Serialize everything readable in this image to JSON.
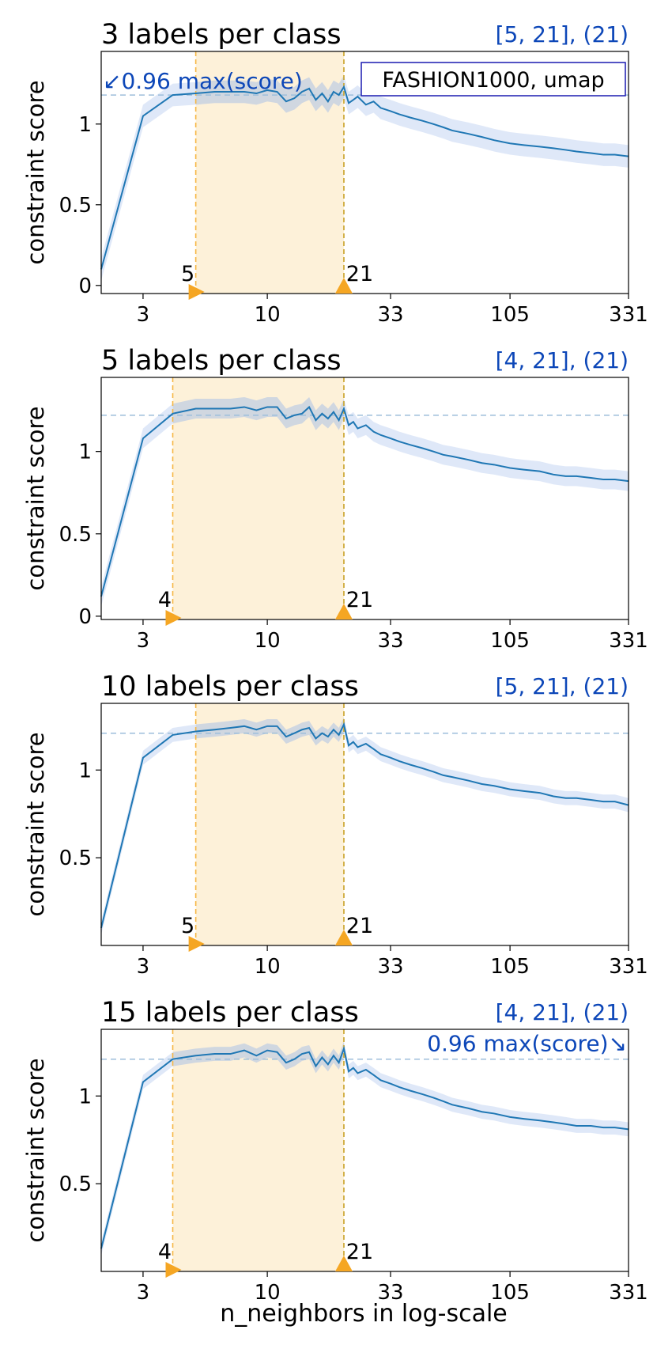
{
  "figure": {
    "xlabel": "n_neighbors in log-scale",
    "ylabel": "constraint score",
    "x_ticks": [
      3,
      10,
      33,
      105,
      331
    ],
    "xlim": [
      2,
      331
    ],
    "x_scale": "log",
    "legend_box": "FASHION1000, umap",
    "colors": {
      "line": "#1f77b4",
      "band": "#dbe6f7",
      "band_gray": "#bfc3c8",
      "region": "#fdf1d9",
      "vline_left": "#f6b642",
      "vline_right": "#c9a227",
      "marker": "#f5a623",
      "hline": "#9dbedb",
      "annotation": "#0d47b8"
    }
  },
  "chart_data": [
    {
      "type": "line",
      "title": "3 labels per class",
      "range_label": "[5, 21], (21)",
      "ylim": [
        -0.05,
        1.45
      ],
      "y_ticks": [
        0.0,
        0.5,
        1.0
      ],
      "threshold": 1.18,
      "threshold_label": "↙0.96 max(score)",
      "threshold_label_pos": "top-left",
      "range": [
        5,
        21
      ],
      "range_start_label": "5",
      "range_end_label": "21",
      "band_std": 0.07,
      "series": [
        {
          "x": [
            2,
            3,
            4,
            5,
            6,
            7,
            8,
            9,
            10,
            11,
            12,
            13,
            14,
            15,
            16,
            17,
            18,
            19,
            20,
            21,
            22,
            23,
            24,
            26,
            28,
            30,
            33,
            36,
            40,
            45,
            50,
            55,
            60,
            70,
            80,
            90,
            105,
            120,
            140,
            160,
            180,
            200,
            230,
            260,
            290,
            331
          ],
          "y": [
            0.1,
            1.05,
            1.18,
            1.19,
            1.2,
            1.2,
            1.2,
            1.19,
            1.21,
            1.2,
            1.14,
            1.16,
            1.2,
            1.22,
            1.15,
            1.19,
            1.14,
            1.2,
            1.18,
            1.23,
            1.13,
            1.15,
            1.17,
            1.12,
            1.14,
            1.1,
            1.08,
            1.06,
            1.04,
            1.02,
            1.0,
            0.98,
            0.96,
            0.94,
            0.92,
            0.9,
            0.88,
            0.87,
            0.86,
            0.85,
            0.84,
            0.83,
            0.82,
            0.81,
            0.81,
            0.8
          ]
        }
      ]
    },
    {
      "type": "line",
      "title": "5 labels per class",
      "range_label": "[4, 21], (21)",
      "ylim": [
        -0.02,
        1.45
      ],
      "y_ticks": [
        0.0,
        0.5,
        1.0
      ],
      "threshold": 1.22,
      "range": [
        4,
        21
      ],
      "range_start_label": "4",
      "range_end_label": "21",
      "band_std": 0.06,
      "series": [
        {
          "x": [
            2,
            3,
            4,
            5,
            6,
            7,
            8,
            9,
            10,
            11,
            12,
            13,
            14,
            15,
            16,
            17,
            18,
            19,
            20,
            21,
            22,
            23,
            24,
            26,
            28,
            30,
            33,
            36,
            40,
            45,
            50,
            55,
            60,
            70,
            80,
            90,
            105,
            120,
            140,
            160,
            180,
            200,
            230,
            260,
            290,
            331
          ],
          "y": [
            0.12,
            1.08,
            1.23,
            1.26,
            1.26,
            1.26,
            1.27,
            1.25,
            1.27,
            1.27,
            1.2,
            1.22,
            1.23,
            1.27,
            1.19,
            1.23,
            1.2,
            1.24,
            1.19,
            1.26,
            1.16,
            1.18,
            1.14,
            1.16,
            1.12,
            1.1,
            1.08,
            1.06,
            1.04,
            1.02,
            1.0,
            0.98,
            0.97,
            0.95,
            0.93,
            0.92,
            0.9,
            0.89,
            0.88,
            0.86,
            0.85,
            0.85,
            0.84,
            0.83,
            0.83,
            0.82
          ]
        }
      ]
    },
    {
      "type": "line",
      "title": "10 labels per class",
      "range_label": "[5, 21], (21)",
      "ylim": [
        0.0,
        1.38
      ],
      "y_ticks": [
        0.5,
        1.0
      ],
      "threshold": 1.21,
      "range": [
        5,
        21
      ],
      "range_start_label": "5",
      "range_end_label": "21",
      "band_std": 0.04,
      "series": [
        {
          "x": [
            2,
            3,
            4,
            5,
            6,
            7,
            8,
            9,
            10,
            11,
            12,
            13,
            14,
            15,
            16,
            17,
            18,
            19,
            20,
            21,
            22,
            23,
            24,
            26,
            28,
            30,
            33,
            36,
            40,
            45,
            50,
            55,
            60,
            70,
            80,
            90,
            105,
            120,
            140,
            160,
            180,
            200,
            230,
            260,
            290,
            331
          ],
          "y": [
            0.1,
            1.07,
            1.2,
            1.22,
            1.23,
            1.24,
            1.25,
            1.23,
            1.25,
            1.25,
            1.19,
            1.21,
            1.23,
            1.24,
            1.18,
            1.21,
            1.19,
            1.23,
            1.2,
            1.26,
            1.14,
            1.16,
            1.13,
            1.15,
            1.12,
            1.09,
            1.07,
            1.05,
            1.03,
            1.01,
            0.99,
            0.97,
            0.96,
            0.94,
            0.92,
            0.91,
            0.89,
            0.88,
            0.87,
            0.85,
            0.84,
            0.84,
            0.83,
            0.82,
            0.82,
            0.8
          ]
        }
      ]
    },
    {
      "type": "line",
      "title": "15 labels per class",
      "range_label": "[4, 21], (21)",
      "ylim": [
        0.0,
        1.38
      ],
      "y_ticks": [
        0.5,
        1.0
      ],
      "threshold": 1.21,
      "threshold_label": "0.96 max(score)↘",
      "threshold_label_pos": "top-right",
      "range": [
        4,
        21
      ],
      "range_start_label": "4",
      "range_end_label": "21",
      "band_std": 0.04,
      "series": [
        {
          "x": [
            2,
            3,
            4,
            5,
            6,
            7,
            8,
            9,
            10,
            11,
            12,
            13,
            14,
            15,
            16,
            17,
            18,
            19,
            20,
            21,
            22,
            23,
            24,
            26,
            28,
            30,
            33,
            36,
            40,
            45,
            50,
            55,
            60,
            70,
            80,
            90,
            105,
            120,
            140,
            160,
            180,
            200,
            230,
            260,
            290,
            331
          ],
          "y": [
            0.13,
            1.08,
            1.21,
            1.23,
            1.24,
            1.24,
            1.26,
            1.23,
            1.26,
            1.25,
            1.19,
            1.21,
            1.24,
            1.25,
            1.17,
            1.22,
            1.18,
            1.23,
            1.19,
            1.27,
            1.14,
            1.16,
            1.13,
            1.15,
            1.12,
            1.09,
            1.07,
            1.05,
            1.03,
            1.01,
            0.99,
            0.97,
            0.95,
            0.93,
            0.91,
            0.9,
            0.88,
            0.87,
            0.86,
            0.85,
            0.84,
            0.83,
            0.83,
            0.82,
            0.82,
            0.81
          ]
        }
      ]
    }
  ]
}
